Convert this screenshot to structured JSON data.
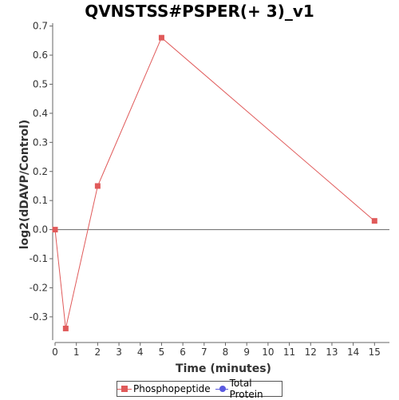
{
  "chart_data": {
    "type": "line",
    "title": "QVNSTSS#PSPER(+ 3)_v1",
    "xlabel": "Time (minutes)",
    "ylabel": "log2(dDAVP/Control)",
    "xlim": [
      0,
      15.7
    ],
    "ylim": [
      -0.38,
      0.71
    ],
    "xticks": [
      0,
      1,
      2,
      3,
      4,
      5,
      6,
      7,
      8,
      9,
      10,
      11,
      12,
      13,
      14,
      15
    ],
    "yticks": [
      -0.3,
      -0.2,
      -0.1,
      0.0,
      0.1,
      0.2,
      0.3,
      0.4,
      0.5,
      0.6,
      0.7
    ],
    "ytick_labels": [
      "-0.3",
      "-0.2",
      "-0.1",
      "0.0",
      "0.1",
      "0.2",
      "0.3",
      "0.4",
      "0.5",
      "0.6",
      "0.7"
    ],
    "zero_line": true,
    "grid": false,
    "legend_position": "bottom",
    "series": [
      {
        "name": "Phosphopeptide",
        "color": "#e05a5a",
        "marker": "square",
        "x": [
          0,
          0.5,
          2,
          5,
          15
        ],
        "y": [
          0.0,
          -0.34,
          0.15,
          0.66,
          0.03
        ]
      },
      {
        "name": "Total Protein",
        "color": "#5a5ae0",
        "marker": "circle",
        "x": [],
        "y": []
      }
    ]
  }
}
